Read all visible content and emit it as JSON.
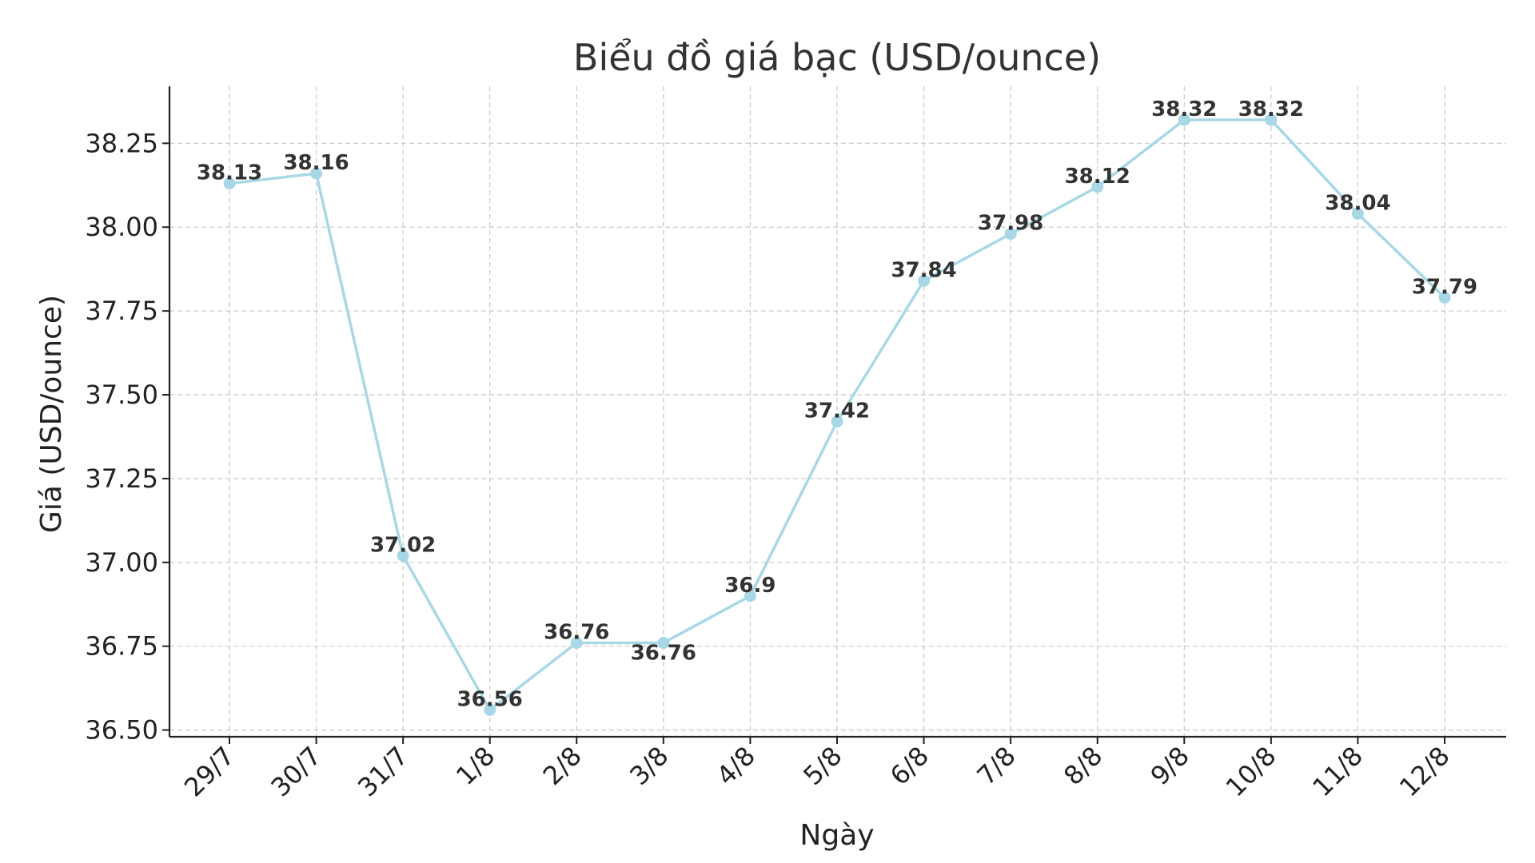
{
  "chart_data": {
    "type": "line",
    "title": "Biểu đồ giá bạc (USD/ounce)",
    "xlabel": "Ngày",
    "ylabel": "Giá (USD/ounce)",
    "categories": [
      "29/7",
      "30/7",
      "31/7",
      "1/8",
      "2/8",
      "3/8",
      "4/8",
      "5/8",
      "6/8",
      "7/8",
      "8/8",
      "9/8",
      "10/8",
      "11/8",
      "12/8"
    ],
    "series": [
      {
        "values": [
          38.13,
          38.16,
          37.02,
          36.56,
          36.76,
          36.76,
          36.9,
          37.42,
          37.84,
          37.98,
          38.12,
          38.32,
          38.32,
          38.04,
          37.79
        ],
        "labels": [
          "38.13",
          "38.16",
          "37.02",
          "36.56",
          "36.76",
          "36.76",
          "36.9",
          "37.42",
          "37.84",
          "37.98",
          "38.12",
          "38.32",
          "38.32",
          "38.04",
          "37.79"
        ],
        "color": "#a8d8e6"
      }
    ],
    "yticks": [
      "36.50",
      "36.75",
      "37.00",
      "37.25",
      "37.50",
      "37.75",
      "38.00",
      "38.25"
    ],
    "ylim": [
      36.48,
      38.42
    ],
    "grid": true,
    "legend": "none"
  }
}
